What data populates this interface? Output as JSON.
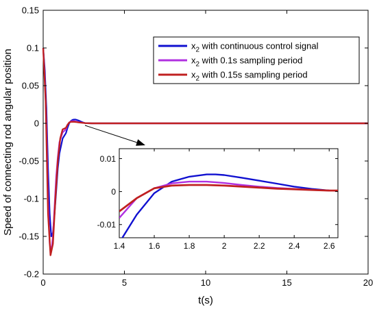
{
  "chart_data": [
    {
      "type": "line",
      "title": "",
      "xlabel": "t(s)",
      "ylabel": "Speed of connecting rod angular position",
      "xlim": [
        0,
        20
      ],
      "ylim": [
        -0.2,
        0.15
      ],
      "xticks": [
        "0",
        "5",
        "10",
        "15",
        "20"
      ],
      "yticks": [
        "0.15",
        "0.1",
        "0.05",
        "0",
        "-0.05",
        "-0.1",
        "-0.15",
        "-0.2"
      ],
      "grid": false,
      "legend": {
        "placement": "top-right",
        "entries": [
          {
            "prefix": "x",
            "sub": "2",
            "suffix": " with continuous control signal"
          },
          {
            "prefix": "x",
            "sub": "2",
            "suffix": " with 0.1s sampling period"
          },
          {
            "prefix": "x",
            "sub": "2",
            "suffix": " with 0.15s sampling period"
          }
        ]
      },
      "series": [
        {
          "color": "#1010d0",
          "points": [
            [
              0,
              0.1
            ],
            [
              0.1,
              0.07
            ],
            [
              0.2,
              0.02
            ],
            [
              0.3,
              -0.06
            ],
            [
              0.4,
              -0.12
            ],
            [
              0.5,
              -0.15
            ],
            [
              0.6,
              -0.145
            ],
            [
              0.7,
              -0.12
            ],
            [
              0.8,
              -0.09
            ],
            [
              0.9,
              -0.06
            ],
            [
              1.0,
              -0.04
            ],
            [
              1.2,
              -0.02
            ],
            [
              1.4,
              -0.013
            ],
            [
              1.5,
              -0.006
            ],
            [
              1.6,
              0.0
            ],
            [
              1.7,
              0.003
            ],
            [
              1.8,
              0.0045
            ],
            [
              1.9,
              0.005
            ],
            [
              2.0,
              0.005
            ],
            [
              2.2,
              0.0035
            ],
            [
              2.4,
              0.0015
            ],
            [
              2.6,
              0.0002
            ],
            [
              3,
              0
            ],
            [
              20,
              0
            ]
          ]
        },
        {
          "color": "#b030e0",
          "points": [
            [
              0,
              0.1
            ],
            [
              0.1,
              0.06
            ],
            [
              0.2,
              0.0
            ],
            [
              0.3,
              -0.1
            ],
            [
              0.4,
              -0.16
            ],
            [
              0.5,
              -0.17
            ],
            [
              0.6,
              -0.15
            ],
            [
              0.7,
              -0.11
            ],
            [
              0.8,
              -0.07
            ],
            [
              0.9,
              -0.045
            ],
            [
              1.0,
              -0.025
            ],
            [
              1.2,
              -0.012
            ],
            [
              1.4,
              -0.008
            ],
            [
              1.5,
              -0.002
            ],
            [
              1.6,
              0.001
            ],
            [
              1.7,
              0.0025
            ],
            [
              1.8,
              0.003
            ],
            [
              1.9,
              0.003
            ],
            [
              2.0,
              0.0025
            ],
            [
              2.2,
              0.0015
            ],
            [
              2.4,
              0.0008
            ],
            [
              2.6,
              0.0003
            ],
            [
              3,
              0
            ],
            [
              20,
              0
            ]
          ]
        },
        {
          "color": "#c02020",
          "points": [
            [
              0,
              0.1
            ],
            [
              0.15,
              0.03
            ],
            [
              0.3,
              -0.12
            ],
            [
              0.45,
              -0.175
            ],
            [
              0.6,
              -0.16
            ],
            [
              0.75,
              -0.1
            ],
            [
              0.9,
              -0.05
            ],
            [
              1.05,
              -0.02
            ],
            [
              1.2,
              -0.008
            ],
            [
              1.4,
              -0.006
            ],
            [
              1.5,
              -0.002
            ],
            [
              1.6,
              0.001
            ],
            [
              1.7,
              0.002
            ],
            [
              1.8,
              0.002
            ],
            [
              1.9,
              0.002
            ],
            [
              2.0,
              0.0018
            ],
            [
              2.2,
              0.0012
            ],
            [
              2.4,
              0.0007
            ],
            [
              2.6,
              0.0003
            ],
            [
              3,
              0
            ],
            [
              20,
              0
            ]
          ]
        }
      ]
    },
    {
      "type": "line",
      "title": "",
      "xlim": [
        1.4,
        2.65
      ],
      "ylim": [
        -0.014,
        0.013
      ],
      "xticks": [
        "1.4",
        "1.6",
        "1.8",
        "2",
        "2.2",
        "2.4",
        "2.6"
      ],
      "yticks": [
        "0.01",
        "0",
        "-0.01"
      ],
      "series": [
        {
          "color": "#1010d0",
          "points": [
            [
              1.4,
              -0.0155
            ],
            [
              1.5,
              -0.007
            ],
            [
              1.6,
              -0.0005
            ],
            [
              1.7,
              0.003
            ],
            [
              1.8,
              0.0045
            ],
            [
              1.9,
              0.0052
            ],
            [
              1.95,
              0.0052
            ],
            [
              2.0,
              0.005
            ],
            [
              2.1,
              0.0042
            ],
            [
              2.2,
              0.0033
            ],
            [
              2.3,
              0.0024
            ],
            [
              2.4,
              0.0015
            ],
            [
              2.5,
              0.0008
            ],
            [
              2.6,
              0.0003
            ],
            [
              2.65,
              0.0002
            ]
          ]
        },
        {
          "color": "#b030e0",
          "points": [
            [
              1.4,
              -0.008
            ],
            [
              1.5,
              -0.002
            ],
            [
              1.6,
              0.001
            ],
            [
              1.7,
              0.0025
            ],
            [
              1.8,
              0.003
            ],
            [
              1.9,
              0.003
            ],
            [
              2.0,
              0.0026
            ],
            [
              2.1,
              0.002
            ],
            [
              2.2,
              0.0015
            ],
            [
              2.3,
              0.0011
            ],
            [
              2.4,
              0.0008
            ],
            [
              2.5,
              0.0005
            ],
            [
              2.6,
              0.0003
            ],
            [
              2.65,
              0.0002
            ]
          ]
        },
        {
          "color": "#c02020",
          "points": [
            [
              1.4,
              -0.006
            ],
            [
              1.5,
              -0.002
            ],
            [
              1.6,
              0.001
            ],
            [
              1.7,
              0.0018
            ],
            [
              1.8,
              0.002
            ],
            [
              1.9,
              0.002
            ],
            [
              2.0,
              0.0018
            ],
            [
              2.1,
              0.0015
            ],
            [
              2.2,
              0.0012
            ],
            [
              2.3,
              0.0009
            ],
            [
              2.4,
              0.0007
            ],
            [
              2.5,
              0.0005
            ],
            [
              2.6,
              0.0003
            ],
            [
              2.65,
              0.0003
            ]
          ]
        }
      ]
    }
  ]
}
